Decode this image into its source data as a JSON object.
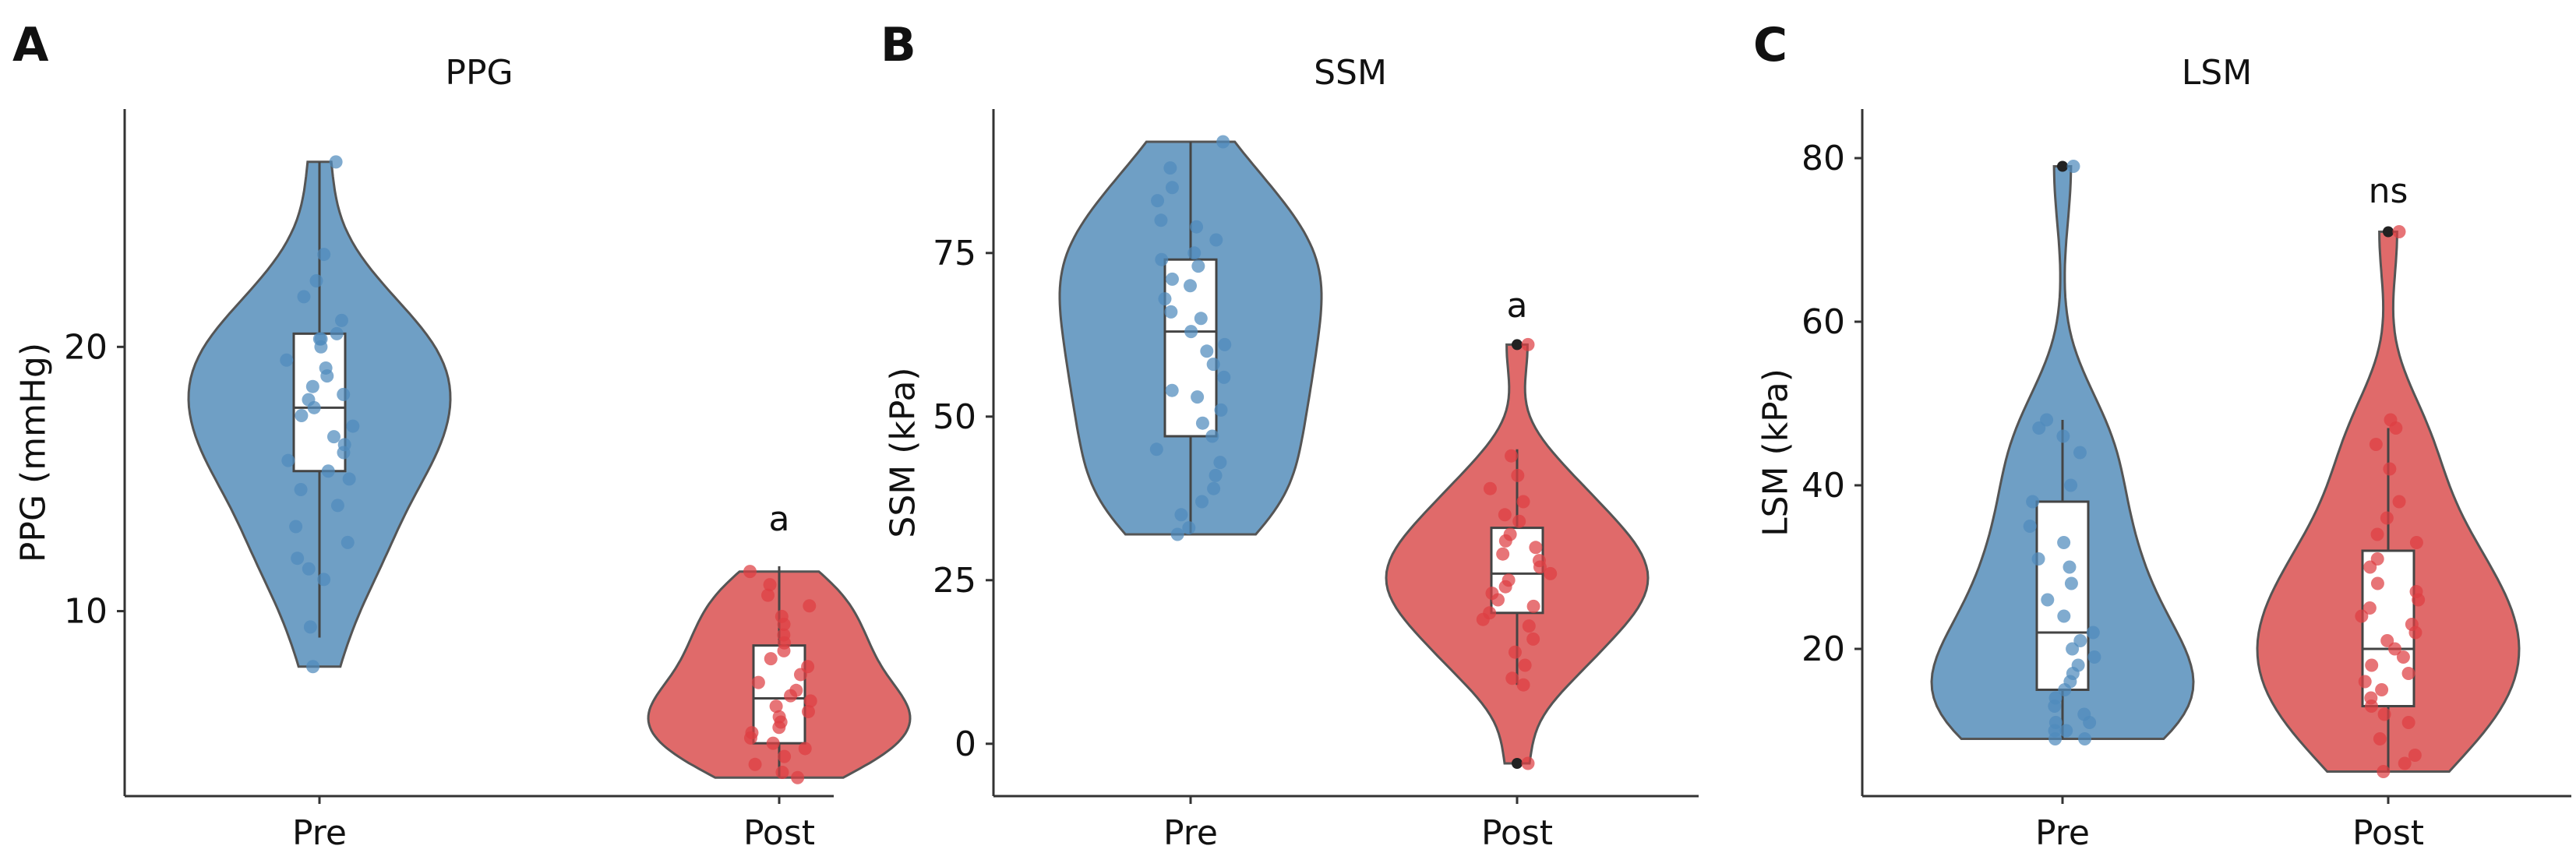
{
  "colors": {
    "pre": "#4f8bbd",
    "post": "#de3f43",
    "pre_fill": "#6f9fc5",
    "post_fill": "#e06a6a"
  },
  "chart_data": [
    {
      "type": "violin",
      "panel_label": "A",
      "title": "PPG",
      "xlabel": "",
      "ylabel": "PPG (mmHg)",
      "ylim": [
        3,
        29
      ],
      "yticks": [
        10,
        20
      ],
      "categories": [
        "Pre",
        "Post"
      ],
      "annotations": [
        {
          "category": "Post",
          "text": "a",
          "y": 13.5
        }
      ],
      "series": [
        {
          "category": "Pre",
          "box": {
            "min": 9.0,
            "q1": 15.3,
            "median": 17.7,
            "q3": 20.5,
            "max": 27.0
          },
          "points": [
            27.0,
            23.5,
            22.5,
            21.9,
            21.0,
            20.5,
            20.3,
            20.3,
            20.0,
            19.5,
            19.2,
            18.9,
            18.5,
            18.2,
            18.0,
            17.7,
            17.4,
            17.0,
            16.6,
            16.3,
            16.0,
            15.7,
            15.3,
            15.0,
            14.6,
            14.0,
            13.2,
            12.6,
            12.0,
            11.6,
            11.2,
            9.4,
            7.9
          ],
          "outliers": []
        },
        {
          "category": "Post",
          "box": {
            "min": 3.7,
            "q1": 5.0,
            "median": 6.7,
            "q3": 8.7,
            "max": 11.7
          },
          "points": [
            11.5,
            11.0,
            10.6,
            10.2,
            9.8,
            9.5,
            9.1,
            8.8,
            8.5,
            8.2,
            7.9,
            7.6,
            7.3,
            7.0,
            6.8,
            6.6,
            6.4,
            6.2,
            6.0,
            5.8,
            5.6,
            5.4,
            5.2,
            5.0,
            4.8,
            4.5,
            4.2,
            3.9,
            3.7
          ],
          "outliers": []
        }
      ]
    },
    {
      "type": "violin",
      "panel_label": "B",
      "title": "SSM",
      "xlabel": "",
      "ylabel": "SSM (kPa)",
      "ylim": [
        -8,
        97
      ],
      "yticks": [
        0,
        25,
        50,
        75
      ],
      "categories": [
        "Pre",
        "Post"
      ],
      "annotations": [
        {
          "category": "Post",
          "text": "a",
          "y": 67
        }
      ],
      "series": [
        {
          "category": "Pre",
          "box": {
            "min": 32,
            "q1": 47,
            "median": 63,
            "q3": 74,
            "max": 92
          },
          "points": [
            92,
            88,
            85,
            83,
            80,
            79,
            77,
            75,
            74,
            73,
            71,
            70,
            68,
            66,
            65,
            63,
            61,
            60,
            58,
            56,
            54,
            53,
            51,
            49,
            47,
            45,
            43,
            41,
            39,
            37,
            35,
            33,
            32
          ],
          "outliers": []
        },
        {
          "category": "Post",
          "box": {
            "min": 9,
            "q1": 20,
            "median": 26,
            "q3": 33,
            "max": 45
          },
          "points": [
            61,
            44,
            41,
            39,
            37,
            35,
            34,
            32,
            31,
            30,
            29,
            28,
            27,
            26,
            25,
            24,
            23,
            22,
            21,
            20,
            19,
            18,
            16,
            14,
            12,
            10,
            9,
            -3
          ],
          "outliers": [
            61,
            -3
          ]
        }
      ]
    },
    {
      "type": "violin",
      "panel_label": "C",
      "title": "LSM",
      "xlabel": "",
      "ylabel": "LSM (kPa)",
      "ylim": [
        2,
        86
      ],
      "yticks": [
        20,
        40,
        60,
        80
      ],
      "categories": [
        "Pre",
        "Post"
      ],
      "annotations": [
        {
          "category": "Post",
          "text": "ns",
          "y": 76
        }
      ],
      "series": [
        {
          "category": "Pre",
          "box": {
            "min": 9,
            "q1": 15,
            "median": 22,
            "q3": 38,
            "max": 48
          },
          "points": [
            79,
            48,
            47,
            46,
            44,
            40,
            38,
            35,
            33,
            31,
            30,
            28,
            26,
            24,
            22,
            21,
            20,
            19,
            18,
            17,
            16,
            15,
            14,
            13,
            12,
            11,
            11,
            10,
            10,
            9,
            9
          ],
          "outliers": [
            79
          ]
        },
        {
          "category": "Post",
          "box": {
            "min": 5,
            "q1": 13,
            "median": 20,
            "q3": 32,
            "max": 47
          },
          "points": [
            71,
            48,
            47,
            45,
            42,
            38,
            36,
            34,
            33,
            31,
            30,
            28,
            27,
            26,
            25,
            24,
            23,
            22,
            21,
            20,
            19,
            18,
            17,
            16,
            15,
            14,
            13,
            12,
            11,
            9,
            7,
            6,
            5
          ],
          "outliers": [
            71
          ]
        }
      ]
    }
  ]
}
